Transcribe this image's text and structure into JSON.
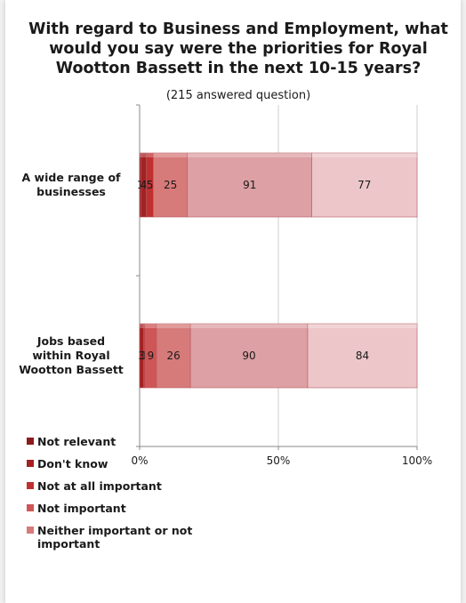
{
  "chart_data": {
    "type": "bar",
    "orientation": "horizontal",
    "stacked": "percent",
    "title": "With regard to Business and Employment, what would you say were the priorities for Royal Wootton Bassett in the next 10-15 years?",
    "subtitle": "(215 answered question)",
    "categories": [
      "A wide range of businesses",
      "Jobs based within Royal Wootton Bassett"
    ],
    "series": [
      {
        "name": "Not relevant",
        "color": "#8c1b1b",
        "values": [
          1,
          0
        ],
        "labels": [
          "1",
          "0"
        ]
      },
      {
        "name": "Don't know",
        "color": "#a52121",
        "values": [
          4,
          3
        ],
        "labels": [
          "4",
          "3"
        ]
      },
      {
        "name": "Not at all important",
        "color": "#c03030",
        "values": [
          5,
          1
        ],
        "labels": [
          "5",
          "1"
        ]
      },
      {
        "name": "Not important",
        "color": "#cf5656",
        "values": [
          0,
          9
        ],
        "labels": [
          "",
          "9"
        ]
      },
      {
        "name": "Neither important or not important",
        "color": "#d77a7a",
        "values": [
          25,
          26
        ],
        "labels": [
          "25",
          "26"
        ]
      },
      {
        "name": "",
        "color": "#dda0a4",
        "values": [
          91,
          90
        ],
        "labels": [
          "91",
          "90"
        ]
      },
      {
        "name": "",
        "color": "#ecc6c9",
        "values": [
          77,
          84
        ],
        "labels": [
          "77",
          "84"
        ]
      }
    ],
    "x_ticks": [
      "0%",
      "50%",
      "100%"
    ],
    "xlim": [
      0,
      100
    ],
    "grid": true,
    "legend_position": "bottom-left"
  }
}
